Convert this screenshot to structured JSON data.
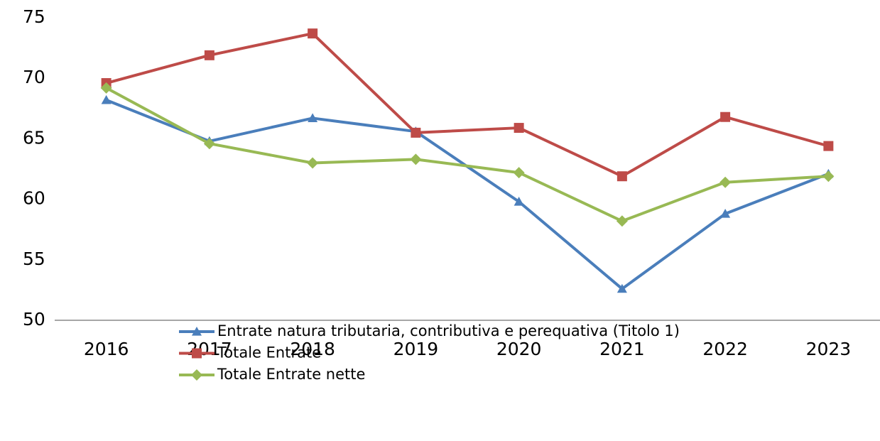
{
  "chart_data": {
    "type": "line",
    "categories": [
      "2016",
      "2017",
      "2018",
      "2019",
      "2020",
      "2021",
      "2022",
      "2023"
    ],
    "series": [
      {
        "name": "Entrate natura tributaria, contributiva e perequativa (Titolo 1)",
        "color": "#4a7ebb",
        "marker": "triangle",
        "values": [
          68.2,
          64.8,
          66.7,
          65.6,
          59.8,
          52.6,
          58.8,
          62.1
        ]
      },
      {
        "name": "Totale Entrate",
        "color": "#be4b48",
        "marker": "square",
        "values": [
          69.6,
          71.9,
          73.7,
          65.5,
          65.9,
          61.9,
          66.8,
          64.4
        ]
      },
      {
        "name": "Totale Entrate nette",
        "color": "#98b954",
        "marker": "diamond",
        "values": [
          69.2,
          64.6,
          63.0,
          63.3,
          62.2,
          58.2,
          61.4,
          61.9
        ]
      }
    ],
    "ylim": [
      50,
      75
    ],
    "yticks": [
      50,
      55,
      60,
      65,
      70,
      75
    ],
    "grid": false,
    "legend": "bottom"
  }
}
